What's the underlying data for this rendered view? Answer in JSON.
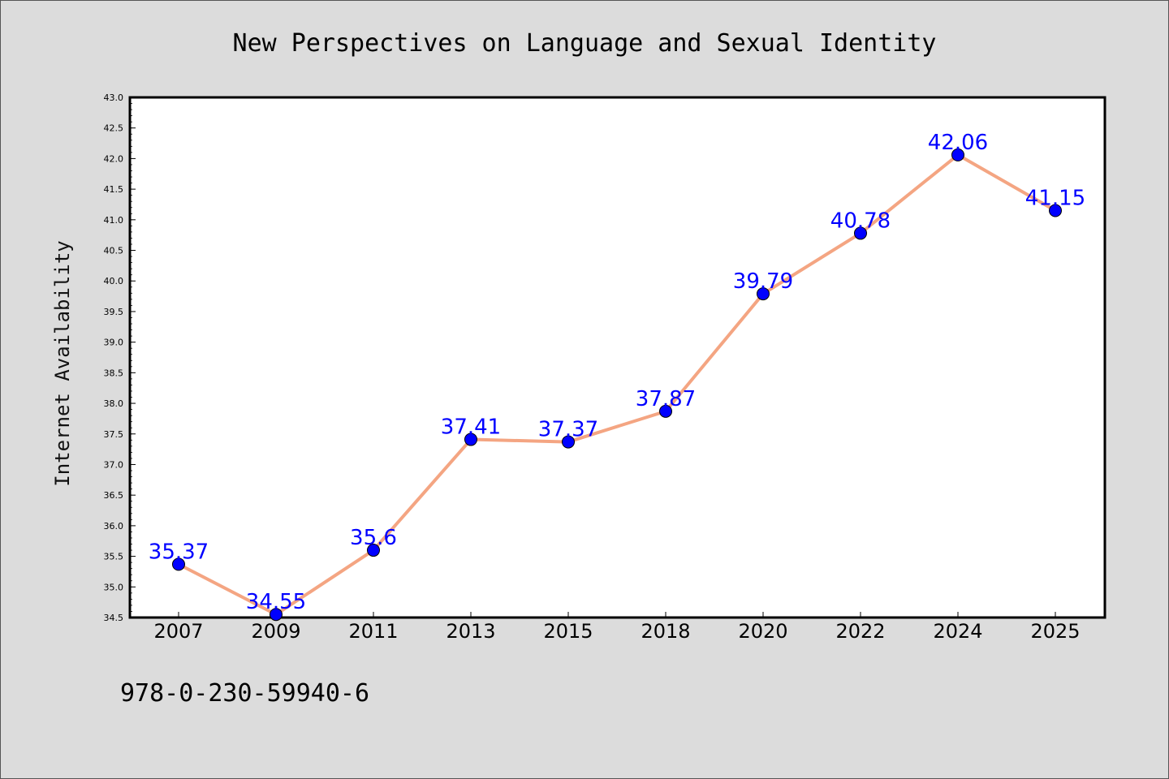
{
  "chart_data": {
    "type": "line",
    "title": "New Perspectives on Language and Sexual Identity",
    "xlabel": "",
    "ylabel": "Internet Availability",
    "categories": [
      "2007",
      "2009",
      "2011",
      "2013",
      "2015",
      "2018",
      "2020",
      "2022",
      "2024",
      "2025"
    ],
    "values": [
      35.37,
      34.55,
      35.6,
      37.41,
      37.37,
      37.87,
      39.79,
      40.78,
      42.06,
      41.15
    ],
    "data_labels": [
      "35.37",
      "34.55",
      "35.6",
      "37.41",
      "37.37",
      "37.87",
      "39.79",
      "40.78",
      "42.06",
      "41.15"
    ],
    "ylim": [
      34.5,
      43.0
    ],
    "yticks": [
      "34.5",
      "35.0",
      "35.5",
      "36.0",
      "36.5",
      "37.0",
      "37.5",
      "38.0",
      "38.5",
      "39.0",
      "39.5",
      "40.0",
      "40.5",
      "41.0",
      "41.5",
      "42.0",
      "42.5",
      "43.0"
    ],
    "grid": false,
    "legend": "none",
    "line_color": "#f4a582",
    "marker_color": "#0000ff",
    "label_color": "#0000ff"
  },
  "footer": {
    "isbn": "978-0-230-59940-6"
  }
}
